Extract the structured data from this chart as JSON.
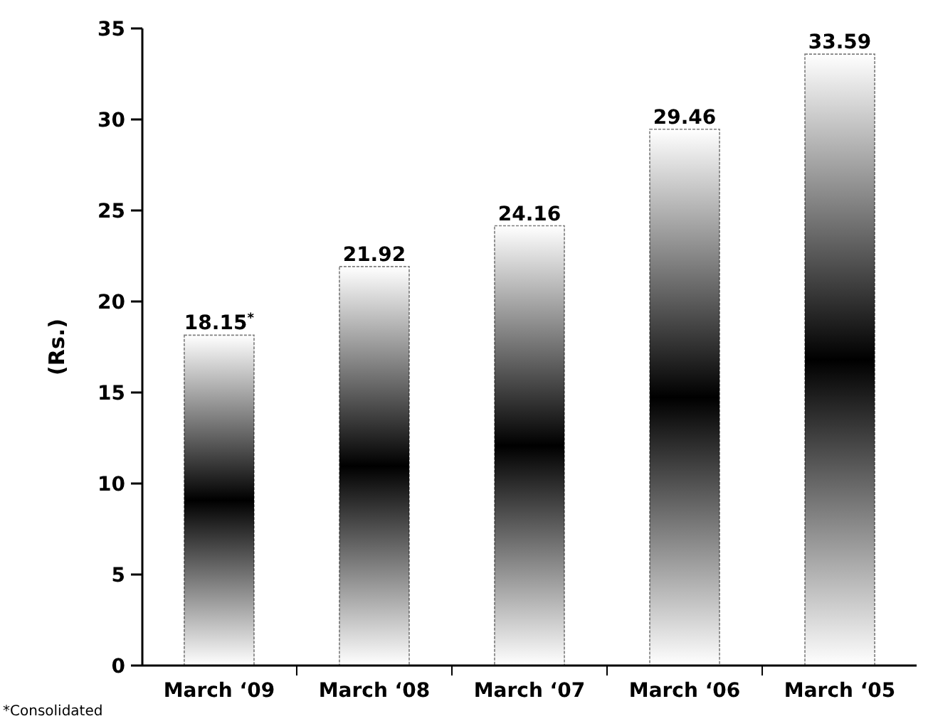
{
  "chart_data": {
    "type": "bar",
    "ylabel": "(Rs.)",
    "categories": [
      "March ‘09",
      "March ‘08",
      "March ‘07",
      "March ‘06",
      "March ‘05"
    ],
    "values": [
      18.15,
      21.92,
      24.16,
      29.46,
      33.59
    ],
    "color": "#000000",
    "value_labels": [
      "18.15$^{*}$",
      "21.92",
      "24.16",
      "29.46",
      "33.59"
    ],
    "ylim": [
      0,
      35
    ],
    "yticks": [
      0,
      5,
      10,
      15,
      20,
      25,
      30,
      35
    ],
    "grid": false,
    "annotations": [
      "*Consolidated"
    ]
  }
}
